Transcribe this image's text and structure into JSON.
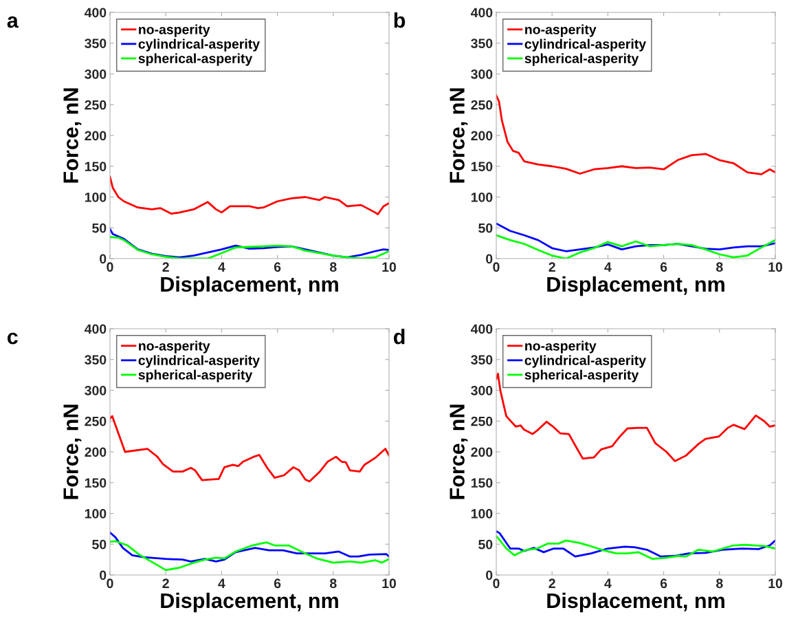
{
  "chart_data": [
    {
      "type": "line",
      "title": "a",
      "xlabel": "Displacement, nm",
      "ylabel": "Force, nN",
      "xlim": [
        0,
        10
      ],
      "ylim": [
        0,
        400
      ],
      "xticks": [
        0,
        2,
        4,
        6,
        8,
        10
      ],
      "yticks": [
        0,
        50,
        100,
        150,
        200,
        250,
        300,
        350,
        400
      ],
      "legend": "top left",
      "grid": false,
      "series": [
        {
          "name": "no-asperity",
          "color": "#ff0000",
          "x": [
            0,
            0.1,
            0.3,
            0.5,
            1,
            1.5,
            1.8,
            2.2,
            2.5,
            3,
            3.5,
            3.8,
            4,
            4.3,
            4.8,
            5,
            5.3,
            5.5,
            6,
            6.5,
            7,
            7.3,
            7.5,
            7.7,
            8.2,
            8.5,
            9,
            9.5,
            9.6,
            9.8,
            10
          ],
          "values": [
            133,
            115,
            100,
            93,
            83,
            80,
            82,
            73,
            75,
            80,
            92,
            80,
            75,
            85,
            85,
            85,
            82,
            83,
            93,
            98,
            100,
            97,
            95,
            100,
            95,
            85,
            87,
            75,
            72,
            85,
            90
          ]
        },
        {
          "name": "cylindrical-asperity",
          "color": "#0000ff",
          "x": [
            0,
            0.1,
            0.5,
            1,
            1.5,
            2,
            2.5,
            3,
            3.5,
            4,
            4.5,
            5,
            5.5,
            6,
            6.5,
            7,
            7.5,
            8,
            8.5,
            9,
            9.5,
            9.8,
            10
          ],
          "values": [
            48,
            40,
            32,
            15,
            8,
            4,
            2,
            5,
            10,
            15,
            21,
            16,
            17,
            19,
            20,
            15,
            10,
            5,
            2,
            6,
            12,
            15,
            14
          ]
        },
        {
          "name": "spherical-asperity",
          "color": "#00ff00",
          "x": [
            0,
            0.3,
            0.5,
            1,
            1.5,
            2,
            2.5,
            3,
            3.5,
            4,
            4.5,
            5,
            5.5,
            6,
            6.5,
            7,
            7.5,
            8,
            8.5,
            9,
            9.5,
            10
          ],
          "values": [
            35,
            34,
            30,
            14,
            7,
            3,
            0,
            0,
            0,
            9,
            18,
            19,
            20,
            21,
            20,
            13,
            9,
            5,
            2,
            0,
            2,
            12
          ]
        }
      ]
    },
    {
      "type": "line",
      "title": "b",
      "xlabel": "Displacement, nm",
      "ylabel": "Force, nN",
      "xlim": [
        0,
        10
      ],
      "ylim": [
        0,
        400
      ],
      "xticks": [
        0,
        2,
        4,
        6,
        8,
        10
      ],
      "yticks": [
        0,
        50,
        100,
        150,
        200,
        250,
        300,
        350,
        400
      ],
      "legend": "top left",
      "grid": false,
      "series": [
        {
          "name": "no-asperity",
          "color": "#ff0000",
          "x": [
            0,
            0.1,
            0.2,
            0.4,
            0.6,
            0.8,
            1,
            1.5,
            2,
            2.5,
            3,
            3.5,
            4,
            4.5,
            5,
            5.5,
            6,
            6.5,
            7,
            7.5,
            8,
            8.5,
            9,
            9.5,
            9.8,
            10
          ],
          "values": [
            265,
            255,
            225,
            190,
            175,
            172,
            158,
            153,
            150,
            146,
            138,
            145,
            147,
            150,
            147,
            148,
            145,
            160,
            168,
            170,
            160,
            155,
            140,
            137,
            145,
            140
          ]
        },
        {
          "name": "cylindrical-asperity",
          "color": "#0000ff",
          "x": [
            0,
            0.5,
            1,
            1.5,
            2,
            2.5,
            3,
            3.5,
            4,
            4.5,
            5,
            5.5,
            6,
            6.5,
            7,
            7.5,
            8,
            8.5,
            9,
            9.5,
            10
          ],
          "values": [
            57,
            45,
            38,
            30,
            17,
            12,
            15,
            18,
            23,
            15,
            20,
            22,
            22,
            24,
            20,
            16,
            15,
            18,
            20,
            20,
            25
          ]
        },
        {
          "name": "spherical-asperity",
          "color": "#00ff00",
          "x": [
            0,
            0.5,
            1,
            1.5,
            2,
            2.5,
            3,
            3.5,
            4,
            4.5,
            5,
            5.5,
            6,
            6.5,
            7,
            7.5,
            8,
            8.5,
            9,
            9.5,
            10
          ],
          "values": [
            38,
            30,
            24,
            14,
            5,
            0,
            10,
            17,
            27,
            20,
            28,
            20,
            22,
            24,
            22,
            15,
            7,
            2,
            5,
            18,
            30
          ]
        }
      ]
    },
    {
      "type": "line",
      "title": "c",
      "xlabel": "Displacement, nm",
      "ylabel": "Force, nN",
      "xlim": [
        0,
        10
      ],
      "ylim": [
        0,
        400
      ],
      "xticks": [
        0,
        2,
        4,
        6,
        8,
        10
      ],
      "yticks": [
        0,
        50,
        100,
        150,
        200,
        250,
        300,
        350,
        400
      ],
      "legend": "top left",
      "grid": false,
      "series": [
        {
          "name": "no-asperity",
          "color": "#ff0000",
          "x": [
            0,
            0.08,
            0.54,
            1.34,
            1.7,
            1.9,
            2.26,
            2.6,
            2.9,
            3.05,
            3.3,
            3.9,
            4.1,
            4.4,
            4.6,
            4.77,
            5.15,
            5.35,
            5.65,
            5.9,
            6.24,
            6.57,
            6.78,
            7.0,
            7.15,
            7.5,
            7.8,
            8.1,
            8.3,
            8.45,
            8.6,
            8.95,
            9.12,
            9.5,
            9.87,
            10
          ],
          "values": [
            254,
            258,
            200,
            205,
            192,
            180,
            168,
            168,
            174,
            170,
            154,
            156,
            175,
            179,
            177,
            184,
            192,
            195,
            173,
            158,
            162,
            175,
            170,
            155,
            152,
            167,
            184,
            192,
            184,
            183,
            170,
            168,
            179,
            190,
            205,
            194
          ]
        },
        {
          "name": "cylindrical-asperity",
          "color": "#0000ff",
          "x": [
            0,
            0.2,
            0.46,
            0.8,
            1.2,
            2,
            2.6,
            2.9,
            3.4,
            3.8,
            4.1,
            4.5,
            5.2,
            5.7,
            6.2,
            6.7,
            7.4,
            7.7,
            8.2,
            8.6,
            8.9,
            9.3,
            9.9,
            10
          ],
          "values": [
            69,
            61,
            44,
            32,
            29,
            26,
            25,
            22,
            26,
            22,
            25,
            37,
            44,
            40,
            40,
            35,
            35,
            35,
            38,
            30,
            30,
            33,
            34,
            30
          ]
        },
        {
          "name": "spherical-asperity",
          "color": "#00ff00",
          "x": [
            0,
            0.2,
            0.63,
            1.05,
            1.55,
            2,
            2.5,
            3,
            3.4,
            3.8,
            4.1,
            4.5,
            5.1,
            5.6,
            5.9,
            6.4,
            7.0,
            7.4,
            8,
            8.6,
            9,
            9.5,
            9.75,
            10
          ],
          "values": [
            54,
            55,
            48,
            33,
            20,
            8,
            12,
            20,
            25,
            28,
            27,
            38,
            48,
            53,
            48,
            48,
            35,
            27,
            20,
            22,
            20,
            24,
            20,
            26
          ]
        }
      ]
    },
    {
      "type": "line",
      "title": "d",
      "xlabel": "Displacement, nm",
      "ylabel": "Force, nN",
      "xlim": [
        0,
        10
      ],
      "ylim": [
        0,
        400
      ],
      "xticks": [
        0,
        2,
        4,
        6,
        8,
        10
      ],
      "yticks": [
        0,
        50,
        100,
        150,
        200,
        250,
        300,
        350,
        400
      ],
      "legend": "top left",
      "grid": false,
      "series": [
        {
          "name": "no-asperity",
          "color": "#ff0000",
          "x": [
            0,
            0.06,
            0.15,
            0.36,
            0.7,
            0.87,
            1.0,
            1.3,
            1.5,
            1.8,
            2.06,
            2.3,
            2.6,
            2.85,
            3.1,
            3.3,
            3.5,
            3.76,
            4.15,
            4.45,
            4.7,
            5.04,
            5.4,
            5.7,
            6.1,
            6.4,
            6.8,
            7.25,
            7.5,
            7.98,
            8.3,
            8.5,
            8.9,
            9.3,
            9.6,
            9.8,
            10
          ],
          "values": [
            318,
            327,
            299,
            258,
            241,
            243,
            236,
            229,
            236,
            249,
            240,
            230,
            229,
            209,
            189,
            190,
            191,
            204,
            209,
            226,
            238,
            239,
            239,
            214,
            200,
            185,
            194,
            213,
            221,
            225,
            239,
            244,
            237,
            259,
            250,
            241,
            243
          ]
        },
        {
          "name": "cylindrical-asperity",
          "color": "#0000ff",
          "x": [
            0,
            0.12,
            0.5,
            0.8,
            1.0,
            1.35,
            1.7,
            2.06,
            2.4,
            2.83,
            3.4,
            4.0,
            4.6,
            4.95,
            5.4,
            5.9,
            6.4,
            6.9,
            7.5,
            8.1,
            8.8,
            9.4,
            9.8,
            10
          ],
          "values": [
            71,
            68,
            43,
            43,
            39,
            44,
            37,
            43,
            43,
            30,
            35,
            43,
            46,
            45,
            41,
            30,
            31,
            35,
            36,
            41,
            43,
            42,
            48,
            56
          ]
        },
        {
          "name": "spherical-asperity",
          "color": "#00ff00",
          "x": [
            0,
            0.1,
            0.36,
            0.65,
            0.87,
            1.1,
            1.47,
            1.85,
            2.23,
            2.5,
            2.98,
            3.3,
            3.77,
            4.3,
            4.7,
            5.1,
            5.6,
            6.1,
            6.5,
            6.8,
            7.25,
            7.75,
            8.5,
            8.9,
            9.6,
            10
          ],
          "values": [
            63,
            58,
            43,
            32,
            37,
            41,
            43,
            51,
            51,
            56,
            52,
            48,
            41,
            35,
            35,
            37,
            26,
            28,
            31,
            30,
            41,
            38,
            48,
            49,
            47,
            43
          ]
        }
      ]
    }
  ]
}
